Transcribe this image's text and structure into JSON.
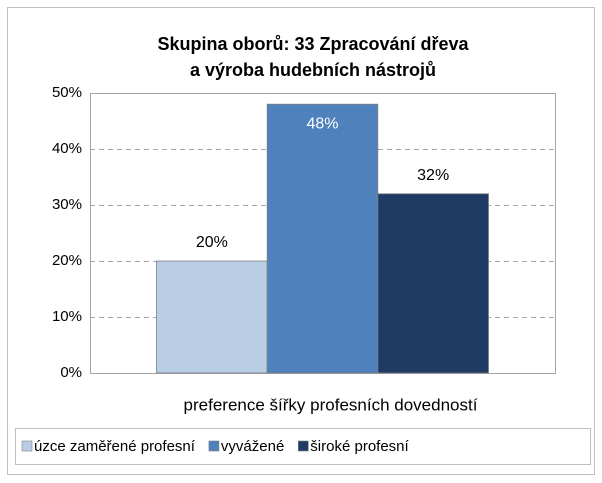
{
  "chart_data": {
    "type": "bar",
    "title": [
      "Skupina oborů: 33 Zpracování dřeva",
      "a výroba hudebních nástrojů"
    ],
    "categories": [
      "preference šířky profesních dovedností"
    ],
    "series": [
      {
        "name": "úzce zaměřené profesní",
        "color": "#b9cde5",
        "values": [
          20
        ],
        "value_labels": [
          "20%"
        ]
      },
      {
        "name": "vyvážené",
        "color": "#4f81bd",
        "values": [
          48
        ],
        "value_labels": [
          "48%"
        ]
      },
      {
        "name": "široké profesní",
        "color": "#1f3b63",
        "values": [
          32
        ],
        "value_labels": [
          "32%"
        ]
      }
    ],
    "ylim": [
      0,
      50
    ],
    "yticks": [
      {
        "value": 0,
        "label": "0%"
      },
      {
        "value": 10,
        "label": "10%"
      },
      {
        "value": 20,
        "label": "20%"
      },
      {
        "value": 30,
        "label": "30%"
      },
      {
        "value": 40,
        "label": "40%"
      },
      {
        "value": 50,
        "label": "50%"
      }
    ],
    "grid": true,
    "legend": "bottom"
  }
}
